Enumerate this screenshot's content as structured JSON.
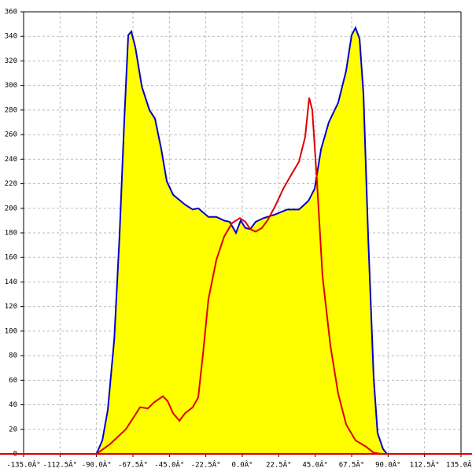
{
  "chart_data": {
    "type": "line",
    "xlim": [
      -135,
      135
    ],
    "ylim": [
      0,
      360
    ],
    "xticks": [
      {
        "value": -135,
        "label": "-135.0Â°"
      },
      {
        "value": -112.5,
        "label": "-112.5Â°"
      },
      {
        "value": -90,
        "label": "-90.0Â°"
      },
      {
        "value": -67.5,
        "label": "-67.5Â°"
      },
      {
        "value": -45,
        "label": "-45.0Â°"
      },
      {
        "value": -22.5,
        "label": "-22.5Â°"
      },
      {
        "value": 0,
        "label": "0.0Â°"
      },
      {
        "value": 22.5,
        "label": "22.5Â°"
      },
      {
        "value": 45,
        "label": "45.0Â°"
      },
      {
        "value": 67.5,
        "label": "67.5Â°"
      },
      {
        "value": 90,
        "label": "90.0Â°"
      },
      {
        "value": 112.5,
        "label": "112.5Â°"
      },
      {
        "value": 135,
        "label": "135.0Â°"
      }
    ],
    "yticks": [
      0,
      20,
      40,
      60,
      80,
      100,
      120,
      140,
      160,
      180,
      200,
      220,
      240,
      260,
      280,
      300,
      320,
      340,
      360
    ],
    "grid": true,
    "series": [
      {
        "color": "#0000cc",
        "fill": "#ffff00",
        "x": [
          -90,
          -86.4,
          -83,
          -79,
          -75.8,
          -72.8,
          -70.4,
          -68.5,
          -66,
          -62,
          -57.3,
          -53.9,
          -50,
          -46.6,
          -42.7,
          -35.4,
          -30.6,
          -27.2,
          -20.9,
          -16,
          -11.2,
          -7.8,
          -3.9,
          -1,
          1.9,
          4.9,
          8.3,
          13.1,
          20.4,
          27.7,
          35,
          40.8,
          44.7,
          48.6,
          53.4,
          59.2,
          64.1,
          67.5,
          69.9,
          72.4,
          74.8,
          77.7,
          81.1,
          83.5,
          86.9,
          89.3
        ],
        "values": [
          0,
          11,
          36,
          94,
          177,
          273,
          341,
          344,
          331,
          299,
          280,
          273,
          248,
          222,
          211,
          203,
          199,
          200,
          193,
          193,
          190,
          189,
          180,
          190,
          184,
          183,
          189,
          192,
          195,
          199,
          199,
          206,
          216,
          248,
          270,
          286,
          312,
          341,
          347,
          338,
          293,
          177,
          62,
          17,
          4,
          0
        ]
      },
      {
        "color": "#dd0000",
        "x": [
          -90,
          -81.6,
          -71.9,
          -67,
          -63.1,
          -58.3,
          -54.4,
          -49,
          -46.1,
          -42.7,
          -38.8,
          -35.4,
          -30.6,
          -27.2,
          -24.3,
          -20.9,
          -16,
          -11.2,
          -6.3,
          -1.5,
          1.9,
          4.9,
          8.3,
          12.1,
          15.5,
          20.4,
          25.3,
          30.1,
          35,
          38.8,
          41.3,
          43.2,
          46.1,
          49.5,
          54.4,
          59.2,
          64.1,
          69.9,
          76.2,
          81.1,
          86
        ],
        "values": [
          0,
          8,
          20,
          30,
          38,
          37,
          42,
          47,
          43,
          33,
          27,
          33,
          38,
          46,
          81,
          126,
          158,
          177,
          188,
          192,
          189,
          183,
          181,
          184,
          190,
          202,
          216,
          227,
          238,
          258,
          290,
          280,
          222,
          145,
          88,
          49,
          24,
          11,
          6,
          1,
          0
        ]
      }
    ]
  }
}
